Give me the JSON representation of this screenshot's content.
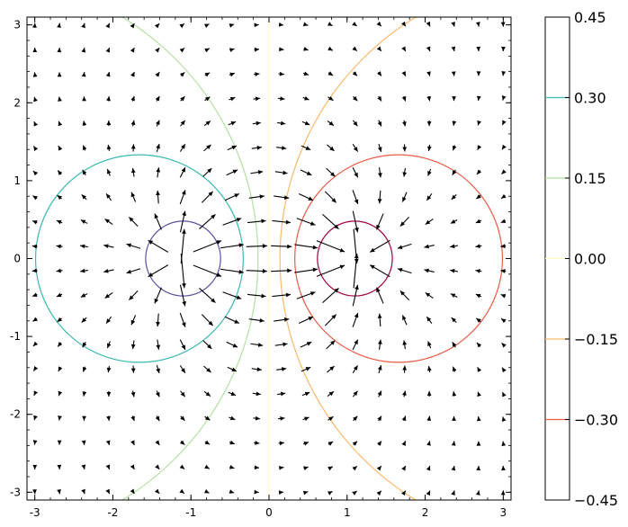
{
  "chart_data": {
    "type": "quiver",
    "title": "",
    "xlabel": "",
    "ylabel": "",
    "xlim": [
      -3.1,
      3.1
    ],
    "ylim": [
      -3.1,
      3.1
    ],
    "xticks": [
      -3,
      -2,
      -1,
      0,
      1,
      2,
      3
    ],
    "xtick_labels": [
      "-3",
      "-2",
      "-1",
      "0",
      "1",
      "2",
      "3"
    ],
    "yticks": [
      -3,
      -2,
      -1,
      0,
      1,
      2,
      3
    ],
    "ytick_labels": [
      "-3",
      "-2",
      "-1",
      "0",
      "1",
      "2",
      "3"
    ],
    "grid": false,
    "sources": [
      {
        "x": -1.1,
        "y": 0
      },
      {
        "x": 1.1,
        "y": 0
      }
    ],
    "contours": [
      {
        "level": 0.45,
        "center": [
          -1.1,
          0
        ],
        "radius": 0.48,
        "color": "#5e4fa2"
      },
      {
        "level": 0.3,
        "center": [
          -1.66,
          0
        ],
        "radius": 1.33,
        "color": "#3bbab0"
      },
      {
        "level": 0.15,
        "center": [
          -3.76,
          0
        ],
        "radius": 3.62,
        "color": "#b4e0a2"
      },
      {
        "level": 0.0,
        "x": 0,
        "color": "#fffdbe"
      },
      {
        "level": -0.15,
        "center": [
          3.76,
          0
        ],
        "radius": 3.62,
        "color": "#fdb96a"
      },
      {
        "level": -0.3,
        "center": [
          1.66,
          0
        ],
        "radius": 1.33,
        "color": "#e95c47"
      },
      {
        "level": -0.45,
        "center": [
          1.1,
          0
        ],
        "radius": 0.48,
        "color": "#9e0142"
      }
    ],
    "colorbar": {
      "range": [
        -0.45,
        0.45
      ],
      "ticks": [
        0.45,
        0.3,
        0.15,
        0.0,
        -0.15,
        -0.3,
        -0.45
      ],
      "tick_labels": [
        "0.45",
        "0.30",
        "0.15",
        "0.00",
        "−0.15",
        "−0.30",
        "−0.45"
      ]
    },
    "quiver_grid": {
      "x_start": -3,
      "x_end": 3,
      "y_start": -3,
      "y_end": 3,
      "count": 20
    }
  }
}
